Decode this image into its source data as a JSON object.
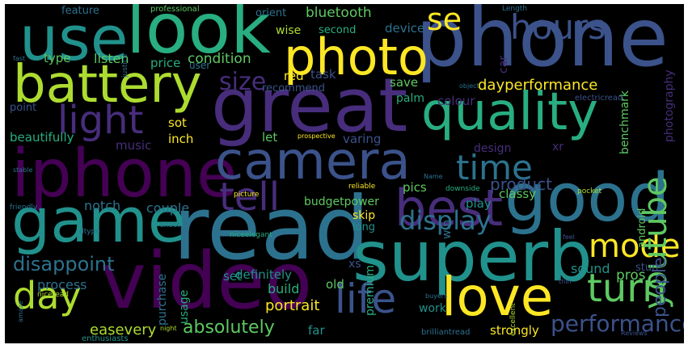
{
  "palette": {
    "background": "#000000",
    "c1": "#440154",
    "c2": "#472d7b",
    "c3": "#3b528b",
    "c4": "#2c728e",
    "c5": "#21918c",
    "c6": "#28ae80",
    "c7": "#5ec962",
    "c8": "#addc30",
    "c9": "#fde725"
  },
  "words": [
    {
      "text": "phone",
      "color": "#3b528b"
    },
    {
      "text": "great",
      "color": "#472d7b"
    },
    {
      "text": "read",
      "color": "#2c728e"
    },
    {
      "text": "superb",
      "color": "#21918c"
    },
    {
      "text": "look",
      "color": "#28ae80"
    },
    {
      "text": "video",
      "color": "#440154"
    },
    {
      "text": "iphone",
      "color": "#440154"
    },
    {
      "text": "use",
      "color": "#21918c"
    },
    {
      "text": "good",
      "color": "#2c728e"
    },
    {
      "text": "game",
      "color": "#21918c"
    },
    {
      "text": "camera",
      "color": "#3b528b"
    },
    {
      "text": "quality",
      "color": "#28ae80"
    },
    {
      "text": "battery",
      "color": "#addc30"
    },
    {
      "text": "photo",
      "color": "#fde725"
    },
    {
      "text": "love",
      "color": "#fde725"
    },
    {
      "text": "best",
      "color": "#472d7b"
    },
    {
      "text": "life",
      "color": "#3b528b"
    },
    {
      "text": "light",
      "color": "#472d7b"
    },
    {
      "text": "tell",
      "color": "#472d7b"
    },
    {
      "text": "day",
      "color": "#addc30"
    },
    {
      "text": "turn",
      "color": "#5ec962"
    },
    {
      "text": "hours",
      "color": "#3b528b"
    },
    {
      "text": "time",
      "color": "#2c728e"
    },
    {
      "text": "mode",
      "color": "#fde725"
    },
    {
      "text": "youtube",
      "color": "#5ec962"
    },
    {
      "text": "display",
      "color": "#2c728e"
    },
    {
      "text": "performance",
      "color": "#3b528b"
    },
    {
      "text": "size",
      "color": "#472d7b"
    },
    {
      "text": "se",
      "color": "#fde725"
    },
    {
      "text": "disappoint",
      "color": "#2c728e"
    },
    {
      "text": "absolutely",
      "color": "#5ec962"
    },
    {
      "text": "people",
      "color": "#3b528b"
    },
    {
      "text": "product",
      "color": "#3b528b"
    },
    {
      "text": "easevery",
      "color": "#addc30"
    },
    {
      "text": "dayperformance",
      "color": "#fde725"
    },
    {
      "text": "portrait",
      "color": "#fde725"
    },
    {
      "text": "bluetooth",
      "color": "#5ec962"
    },
    {
      "text": "condition",
      "color": "#5ec962"
    },
    {
      "text": "couple",
      "color": "#2c728e"
    },
    {
      "text": "process",
      "color": "#2c728e"
    },
    {
      "text": "build",
      "color": "#28ae80"
    },
    {
      "text": "pros",
      "color": "#5ec962"
    },
    {
      "text": "sound",
      "color": "#21918c"
    },
    {
      "text": "listen",
      "color": "#5ec962"
    },
    {
      "text": "type",
      "color": "#5ec962"
    },
    {
      "text": "price",
      "color": "#28ae80"
    },
    {
      "text": "notch",
      "color": "#2c728e"
    },
    {
      "text": "music",
      "color": "#472d7b"
    },
    {
      "text": "beautifully",
      "color": "#28ae80"
    },
    {
      "text": "definitely",
      "color": "#21918c"
    },
    {
      "text": "set",
      "color": "#21918c"
    },
    {
      "text": "old",
      "color": "#5ec962"
    },
    {
      "text": "far",
      "color": "#21918c"
    },
    {
      "text": "strongly",
      "color": "#fde725"
    },
    {
      "text": "budgetpower",
      "color": "#5ec962"
    },
    {
      "text": "pics",
      "color": "#5ec962"
    },
    {
      "text": "skip",
      "color": "#fde725"
    },
    {
      "text": "long",
      "color": "#21918c"
    },
    {
      "text": "xs",
      "color": "#3b528b"
    },
    {
      "text": "premium",
      "color": "#28ae80"
    },
    {
      "text": "varing",
      "color": "#3b528b"
    },
    {
      "text": "let",
      "color": "#5ec962"
    },
    {
      "text": "inch",
      "color": "#fde725"
    },
    {
      "text": "sot",
      "color": "#fde725"
    },
    {
      "text": "red",
      "color": "#fde725"
    },
    {
      "text": "task",
      "color": "#3b528b"
    },
    {
      "text": "save",
      "color": "#5ec962"
    },
    {
      "text": "palm",
      "color": "#28ae80"
    },
    {
      "text": "colour",
      "color": "#472d7b"
    },
    {
      "text": "recommend",
      "color": "#3b528b"
    },
    {
      "text": "device",
      "color": "#2c728e"
    },
    {
      "text": "wise",
      "color": "#addc30"
    },
    {
      "text": "second",
      "color": "#28ae80"
    },
    {
      "text": "orient",
      "color": "#2c728e"
    },
    {
      "text": "feature",
      "color": "#2c728e"
    },
    {
      "text": "user",
      "color": "#2c728e"
    },
    {
      "text": "point",
      "color": "#3b528b"
    },
    {
      "text": "classy",
      "color": "#5ec962"
    },
    {
      "text": "play",
      "color": "#21918c"
    },
    {
      "text": "design",
      "color": "#472d7b"
    },
    {
      "text": "win",
      "color": "#2c728e"
    },
    {
      "text": "xr",
      "color": "#472d7b"
    },
    {
      "text": "work",
      "color": "#21918c"
    },
    {
      "text": "usage",
      "color": "#28ae80"
    },
    {
      "text": "purchase",
      "color": "#2c728e"
    },
    {
      "text": "car",
      "color": "#472d7b"
    },
    {
      "text": "benchmark",
      "color": "#5ec962"
    },
    {
      "text": "photography",
      "color": "#472d7b"
    },
    {
      "text": "android",
      "color": "#5ec962"
    },
    {
      "text": "stun",
      "color": "#3b528b"
    },
    {
      "text": "professional",
      "color": "#5ec962"
    },
    {
      "text": "justice",
      "color": "#2c728e"
    },
    {
      "text": "Length",
      "color": "#2c728e"
    },
    {
      "text": "fast",
      "color": "#2c728e"
    },
    {
      "text": "object",
      "color": "#2c728e"
    },
    {
      "text": "electricread",
      "color": "#3b528b"
    },
    {
      "text": "stable",
      "color": "#2c728e"
    },
    {
      "text": "prospective",
      "color": "#fde725"
    },
    {
      "text": "reliable",
      "color": "#fde725"
    },
    {
      "text": "Name",
      "color": "#2c728e"
    },
    {
      "text": "downside",
      "color": "#28ae80"
    },
    {
      "text": "pocket",
      "color": "#addc30"
    },
    {
      "text": "friendly",
      "color": "#2c728e"
    },
    {
      "text": "picture",
      "color": "#fde725"
    },
    {
      "text": "shoot",
      "color": "#2c728e"
    },
    {
      "text": "niceelegant",
      "color": "#28ae80"
    },
    {
      "text": "dtype",
      "color": "#2c728e"
    },
    {
      "text": "feel",
      "color": "#3b528b"
    },
    {
      "text": "niceread",
      "color": "#addc30"
    },
    {
      "text": "amaze",
      "color": "#2c728e"
    },
    {
      "text": "buyers",
      "color": "#2c728e"
    },
    {
      "text": "excellent",
      "color": "#addc30"
    },
    {
      "text": "thin",
      "color": "#3b528b"
    },
    {
      "text": "enthusiasts",
      "color": "#21918c"
    },
    {
      "text": "night",
      "color": "#addc30"
    },
    {
      "text": "brilliantread",
      "color": "#2c728e"
    },
    {
      "text": "Reviews",
      "color": "#3b528b"
    }
  ]
}
